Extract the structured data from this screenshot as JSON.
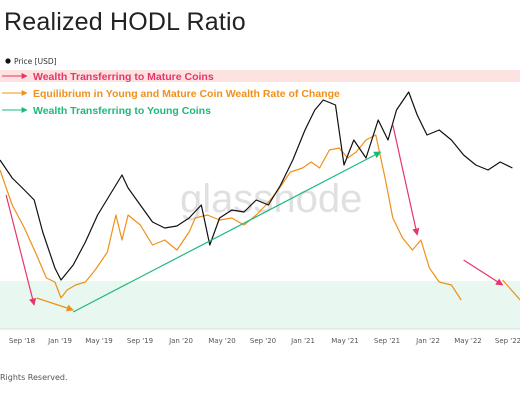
{
  "page": {
    "title": "Realized HODL Ratio",
    "footer": "Rights Reserved.",
    "watermark": "glassnode"
  },
  "chart_data": {
    "type": "line",
    "title": "Realized HODL Ratio",
    "x_ticks": [
      "Sep '18",
      "Jan '19",
      "May '19",
      "Sep '19",
      "Jan '20",
      "May '20",
      "Sep '20",
      "Jan '21",
      "May '21",
      "Sep '21",
      "Jan '22",
      "May '22",
      "Sep '22"
    ],
    "xlim": [
      "2018-06",
      "2022-11"
    ],
    "legend": {
      "position": "top-left",
      "items": [
        "Price [USD]"
      ]
    },
    "series": [
      {
        "name": "Price [USD]",
        "color": "#111111",
        "values": [
          [
            2018.5,
            160
          ],
          [
            2018.6,
            178
          ],
          [
            2018.7,
            190
          ],
          [
            2018.78,
            200
          ],
          [
            2018.85,
            232
          ],
          [
            2018.95,
            268
          ],
          [
            2019.0,
            280
          ],
          [
            2019.1,
            265
          ],
          [
            2019.2,
            242
          ],
          [
            2019.3,
            215
          ],
          [
            2019.4,
            195
          ],
          [
            2019.5,
            175
          ],
          [
            2019.55,
            188
          ],
          [
            2019.65,
            205
          ],
          [
            2019.75,
            222
          ],
          [
            2019.85,
            228
          ],
          [
            2019.95,
            226
          ],
          [
            2020.05,
            218
          ],
          [
            2020.15,
            205
          ],
          [
            2020.22,
            245
          ],
          [
            2020.3,
            218
          ],
          [
            2020.4,
            210
          ],
          [
            2020.5,
            212
          ],
          [
            2020.6,
            200
          ],
          [
            2020.7,
            205
          ],
          [
            2020.8,
            185
          ],
          [
            2020.9,
            160
          ],
          [
            2021.0,
            130
          ],
          [
            2021.08,
            110
          ],
          [
            2021.15,
            100
          ],
          [
            2021.25,
            105
          ],
          [
            2021.32,
            165
          ],
          [
            2021.4,
            140
          ],
          [
            2021.5,
            158
          ],
          [
            2021.6,
            120
          ],
          [
            2021.68,
            140
          ],
          [
            2021.75,
            110
          ],
          [
            2021.85,
            92
          ],
          [
            2021.92,
            115
          ],
          [
            2022.0,
            135
          ],
          [
            2022.1,
            130
          ],
          [
            2022.2,
            140
          ],
          [
            2022.3,
            155
          ],
          [
            2022.4,
            165
          ],
          [
            2022.5,
            170
          ],
          [
            2022.6,
            162
          ],
          [
            2022.7,
            168
          ]
        ]
      },
      {
        "name": "",
        "color": "#f0901a",
        "values": [
          [
            2018.5,
            170
          ],
          [
            2018.6,
            205
          ],
          [
            2018.7,
            228
          ],
          [
            2018.8,
            255
          ],
          [
            2018.88,
            278
          ],
          [
            2018.95,
            282
          ],
          [
            2019.0,
            298
          ],
          [
            2019.05,
            290
          ],
          [
            2019.12,
            285
          ],
          [
            2019.2,
            282
          ],
          [
            2019.28,
            270
          ],
          [
            2019.38,
            252
          ],
          [
            2019.45,
            215
          ],
          [
            2019.5,
            240
          ],
          [
            2019.55,
            215
          ],
          [
            2019.65,
            225
          ],
          [
            2019.75,
            245
          ],
          [
            2019.85,
            240
          ],
          [
            2019.95,
            250
          ],
          [
            2020.05,
            232
          ],
          [
            2020.1,
            218
          ],
          [
            2020.2,
            215
          ],
          [
            2020.3,
            220
          ],
          [
            2020.4,
            218
          ],
          [
            2020.5,
            225
          ],
          [
            2020.6,
            215
          ],
          [
            2020.68,
            205
          ],
          [
            2020.78,
            190
          ],
          [
            2020.88,
            172
          ],
          [
            2020.98,
            168
          ],
          [
            2021.05,
            162
          ],
          [
            2021.12,
            168
          ],
          [
            2021.2,
            150
          ],
          [
            2021.28,
            148
          ],
          [
            2021.35,
            158
          ],
          [
            2021.42,
            152
          ],
          [
            2021.5,
            140
          ],
          [
            2021.58,
            135
          ],
          [
            2021.66,
            180
          ],
          [
            2021.72,
            218
          ],
          [
            2021.8,
            238
          ],
          [
            2021.88,
            250
          ],
          [
            2021.95,
            240
          ],
          [
            2022.02,
            268
          ],
          [
            2022.1,
            282
          ],
          [
            2022.2,
            285
          ],
          [
            2022.28,
            300
          ]
        ]
      }
    ],
    "annotations": [
      {
        "label": "Wealth Transferring to Mature Coins",
        "color": "#e8346a",
        "arrow_segments": [
          [
            [
              2018.55,
              195
            ],
            [
              2018.78,
              305
            ]
          ],
          [
            [
              2021.72,
              125
            ],
            [
              2021.92,
              235
            ]
          ],
          [
            [
              2022.3,
              260
            ],
            [
              2022.62,
              285
            ]
          ]
        ]
      },
      {
        "label": "Equilibrium in Young and Mature Coin Wealth Rate of Change",
        "color": "#f0901a",
        "arrow_segments": [
          [
            [
              2018.8,
              298
            ],
            [
              2019.1,
              310
            ]
          ],
          [
            [
              2022.62,
              280
            ],
            [
              2022.85,
              312
            ]
          ]
        ]
      },
      {
        "label": "Wealth Transferring to Young Coins",
        "color": "#1db979",
        "arrow_segments": [
          [
            [
              2019.1,
              312
            ],
            [
              2021.62,
              152
            ]
          ]
        ]
      }
    ]
  }
}
